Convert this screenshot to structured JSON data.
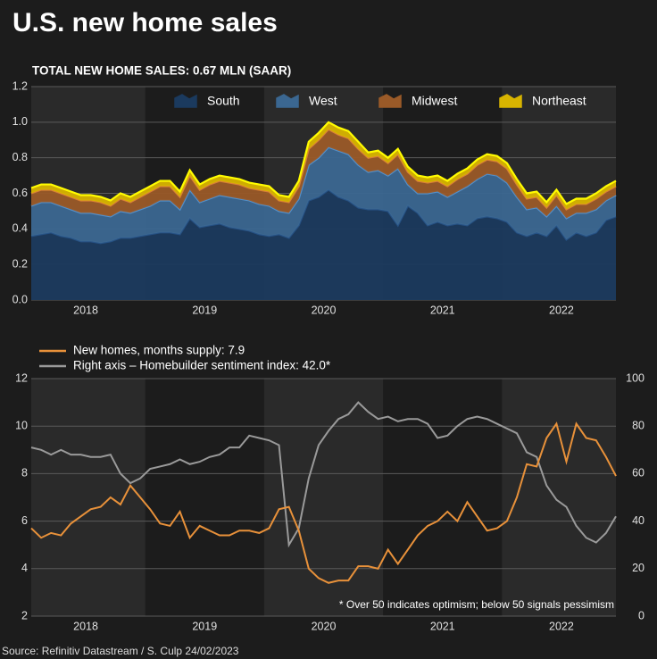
{
  "title": "U.S. new home sales",
  "source": "Source: Refinitiv Datastream / S. Culp 24/02/2023",
  "chart_data": [
    {
      "type": "stacked-area",
      "title": "TOTAL NEW HOME SALES: 0.67 MLN (SAAR)",
      "categories": [
        null,
        null,
        null,
        null,
        null,
        "2018",
        null,
        null,
        null,
        null,
        null,
        null,
        null,
        null,
        null,
        null,
        null,
        "2019",
        null,
        null,
        null,
        null,
        null,
        null,
        null,
        null,
        null,
        null,
        null,
        "2020",
        null,
        null,
        null,
        null,
        null,
        null,
        null,
        null,
        null,
        null,
        null,
        "2021",
        null,
        null,
        null,
        null,
        null,
        null,
        null,
        null,
        null,
        null,
        null,
        "2022",
        null,
        null,
        null,
        null,
        null,
        null
      ],
      "series": [
        {
          "name": "South",
          "color": "#1b3a5e",
          "values": [
            0.36,
            0.37,
            0.38,
            0.36,
            0.35,
            0.33,
            0.33,
            0.32,
            0.33,
            0.35,
            0.35,
            0.36,
            0.37,
            0.38,
            0.38,
            0.37,
            0.46,
            0.41,
            0.42,
            0.43,
            0.41,
            0.4,
            0.39,
            0.37,
            0.36,
            0.37,
            0.35,
            0.42,
            0.56,
            0.58,
            0.62,
            0.58,
            0.56,
            0.52,
            0.51,
            0.51,
            0.5,
            0.42,
            0.53,
            0.49,
            0.42,
            0.44,
            0.42,
            0.43,
            0.42,
            0.46,
            0.47,
            0.46,
            0.44,
            0.38,
            0.36,
            0.38,
            0.36,
            0.42,
            0.34,
            0.38,
            0.36,
            0.38,
            0.45,
            0.47
          ]
        },
        {
          "name": "West",
          "color": "#3b6791",
          "values": [
            0.17,
            0.18,
            0.17,
            0.17,
            0.16,
            0.16,
            0.16,
            0.16,
            0.14,
            0.15,
            0.14,
            0.15,
            0.16,
            0.18,
            0.18,
            0.14,
            0.16,
            0.14,
            0.15,
            0.16,
            0.17,
            0.17,
            0.17,
            0.17,
            0.17,
            0.13,
            0.14,
            0.15,
            0.2,
            0.22,
            0.24,
            0.26,
            0.26,
            0.24,
            0.21,
            0.22,
            0.2,
            0.32,
            0.12,
            0.11,
            0.18,
            0.17,
            0.16,
            0.18,
            0.22,
            0.22,
            0.24,
            0.24,
            0.22,
            0.2,
            0.15,
            0.14,
            0.11,
            0.11,
            0.12,
            0.11,
            0.13,
            0.13,
            0.11,
            0.12
          ]
        },
        {
          "name": "Midwest",
          "color": "#9a5a28",
          "values": [
            0.07,
            0.07,
            0.07,
            0.07,
            0.07,
            0.07,
            0.07,
            0.07,
            0.06,
            0.07,
            0.06,
            0.07,
            0.08,
            0.08,
            0.08,
            0.07,
            0.08,
            0.07,
            0.08,
            0.08,
            0.08,
            0.08,
            0.07,
            0.08,
            0.08,
            0.06,
            0.06,
            0.07,
            0.09,
            0.1,
            0.1,
            0.09,
            0.09,
            0.09,
            0.08,
            0.08,
            0.07,
            0.08,
            0.07,
            0.07,
            0.06,
            0.06,
            0.06,
            0.07,
            0.07,
            0.08,
            0.08,
            0.08,
            0.08,
            0.07,
            0.06,
            0.06,
            0.05,
            0.06,
            0.05,
            0.05,
            0.05,
            0.06,
            0.05,
            0.05
          ]
        },
        {
          "name": "Northeast",
          "color": "#d8b400",
          "values": [
            0.03,
            0.03,
            0.03,
            0.03,
            0.03,
            0.03,
            0.03,
            0.03,
            0.03,
            0.03,
            0.03,
            0.03,
            0.03,
            0.03,
            0.03,
            0.03,
            0.03,
            0.03,
            0.03,
            0.03,
            0.03,
            0.03,
            0.03,
            0.03,
            0.03,
            0.03,
            0.03,
            0.03,
            0.04,
            0.04,
            0.04,
            0.04,
            0.04,
            0.04,
            0.03,
            0.03,
            0.03,
            0.03,
            0.03,
            0.03,
            0.03,
            0.03,
            0.03,
            0.03,
            0.03,
            0.03,
            0.03,
            0.03,
            0.03,
            0.03,
            0.03,
            0.03,
            0.03,
            0.03,
            0.03,
            0.03,
            0.03,
            0.03,
            0.03,
            0.03
          ]
        }
      ],
      "ylim": [
        0,
        1.2
      ],
      "yticks": [
        {
          "value": 0,
          "label": "0.0"
        },
        0.2,
        0.4,
        0.6,
        0.8,
        {
          "value": 1,
          "label": "1.0"
        },
        1.2
      ],
      "grid": true,
      "legend": "top"
    },
    {
      "type": "line",
      "annotation": "* Over 50 indicates optimism; below 50 signals pessimism",
      "categories": [
        null,
        null,
        null,
        null,
        null,
        "2018",
        null,
        null,
        null,
        null,
        null,
        null,
        null,
        null,
        null,
        null,
        null,
        "2019",
        null,
        null,
        null,
        null,
        null,
        null,
        null,
        null,
        null,
        null,
        null,
        "2020",
        null,
        null,
        null,
        null,
        null,
        null,
        null,
        null,
        null,
        null,
        null,
        "2021",
        null,
        null,
        null,
        null,
        null,
        null,
        null,
        null,
        null,
        null,
        null,
        "2022",
        null,
        null,
        null,
        null,
        null,
        null
      ],
      "series": [
        {
          "name": "New homes, months supply: 7.9",
          "color": "#e8913a",
          "values": [
            5.7,
            5.3,
            5.5,
            5.4,
            5.9,
            6.2,
            6.5,
            6.6,
            7.0,
            6.7,
            7.5,
            7.0,
            6.5,
            5.9,
            5.8,
            6.4,
            5.3,
            5.8,
            5.6,
            5.4,
            5.4,
            5.6,
            5.6,
            5.5,
            5.7,
            6.5,
            6.6,
            5.6,
            4.0,
            3.6,
            3.4,
            3.5,
            3.5,
            4.1,
            4.1,
            4.0,
            4.8,
            4.2,
            4.8,
            5.4,
            5.8,
            6.0,
            6.4,
            6.0,
            6.8,
            6.2,
            5.6,
            5.7,
            6.0,
            7.0,
            8.4,
            8.3,
            9.5,
            10.1,
            8.5,
            10.1,
            9.5,
            9.4,
            8.7,
            7.9
          ]
        },
        {
          "name": "Right axis – Homebuilder sentiment index: 42.0*",
          "color": "#9a9a9a",
          "axis": "y2",
          "values": [
            71,
            70,
            68,
            70,
            68,
            68,
            67,
            67,
            68,
            60,
            56,
            58,
            62,
            63,
            64,
            66,
            64,
            65,
            67,
            68,
            71,
            71,
            76,
            75,
            74,
            72,
            30,
            37,
            58,
            72,
            78,
            83,
            85,
            90,
            86,
            83,
            84,
            82,
            83,
            83,
            81,
            75,
            76,
            80,
            83,
            84,
            83,
            81,
            79,
            77,
            69,
            67,
            55,
            49,
            46,
            38,
            33,
            31,
            35,
            42
          ]
        }
      ],
      "ylim": [
        2,
        12
      ],
      "yticks": [
        2,
        4,
        6,
        8,
        10,
        12
      ],
      "y2lim": [
        0,
        100
      ],
      "y2ticks": [
        0,
        20,
        40,
        60,
        80,
        100
      ],
      "grid": true,
      "legend": "top-left"
    }
  ]
}
